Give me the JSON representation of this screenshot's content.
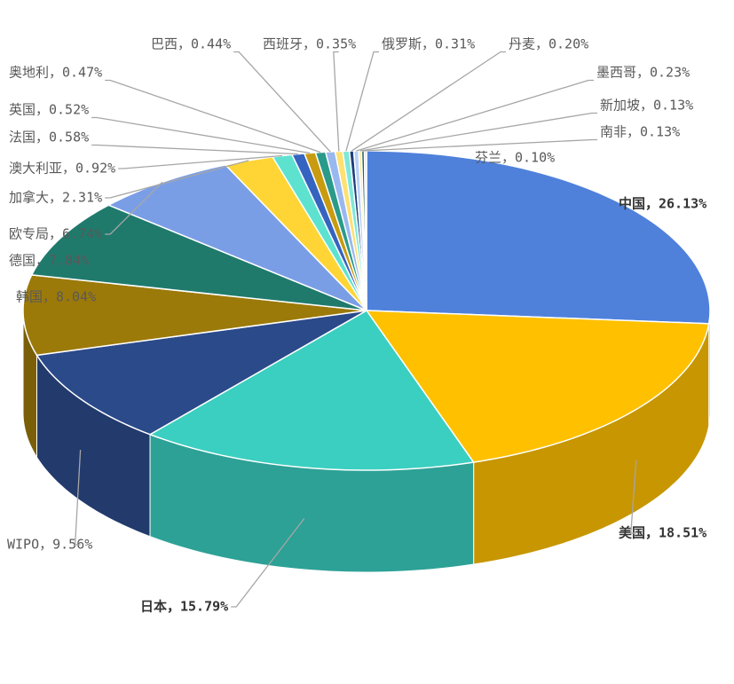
{
  "chart_data": {
    "type": "pie3d",
    "values": [
      26.13,
      18.51,
      15.79,
      9.56,
      8.04,
      7.84,
      6.74,
      2.31,
      0.92,
      0.58,
      0.52,
      0.47,
      0.44,
      0.35,
      0.31,
      0.2,
      0.23,
      0.13,
      0.13,
      0.1
    ],
    "value_labels": [
      "中国，26.13%",
      "美国，18.51%",
      "日本，15.79%",
      "WIPO，9.56%",
      "韩国，8.04%",
      "德国，7.84%",
      "欧专局，6.74%",
      "加拿大，2.31%",
      "澳大利亚，0.92%",
      "法国，0.58%",
      "英国，0.52%",
      "奥地利，0.47%",
      "巴西，0.44%",
      "西班牙，0.35%",
      "俄罗斯，0.31%",
      "丹麦，0.20%",
      "墨西哥，0.23%",
      "新加坡，0.13%",
      "南非，0.13%",
      "芬兰，0.10%"
    ],
    "colors": [
      "#4f81db",
      "#ffc000",
      "#3acfc0",
      "#2b4a8a",
      "#9c7a0a",
      "#1f7a6c",
      "#7a9ee6",
      "#ffd535",
      "#5ee2d0",
      "#3563c0",
      "#c89b10",
      "#2a9a8a",
      "#9ab8f0",
      "#ffe070",
      "#7fe8d8",
      "#1e3e7a",
      "#b8d0f8",
      "#ffe9a0",
      "#26605a",
      "#d0dcf4"
    ]
  }
}
